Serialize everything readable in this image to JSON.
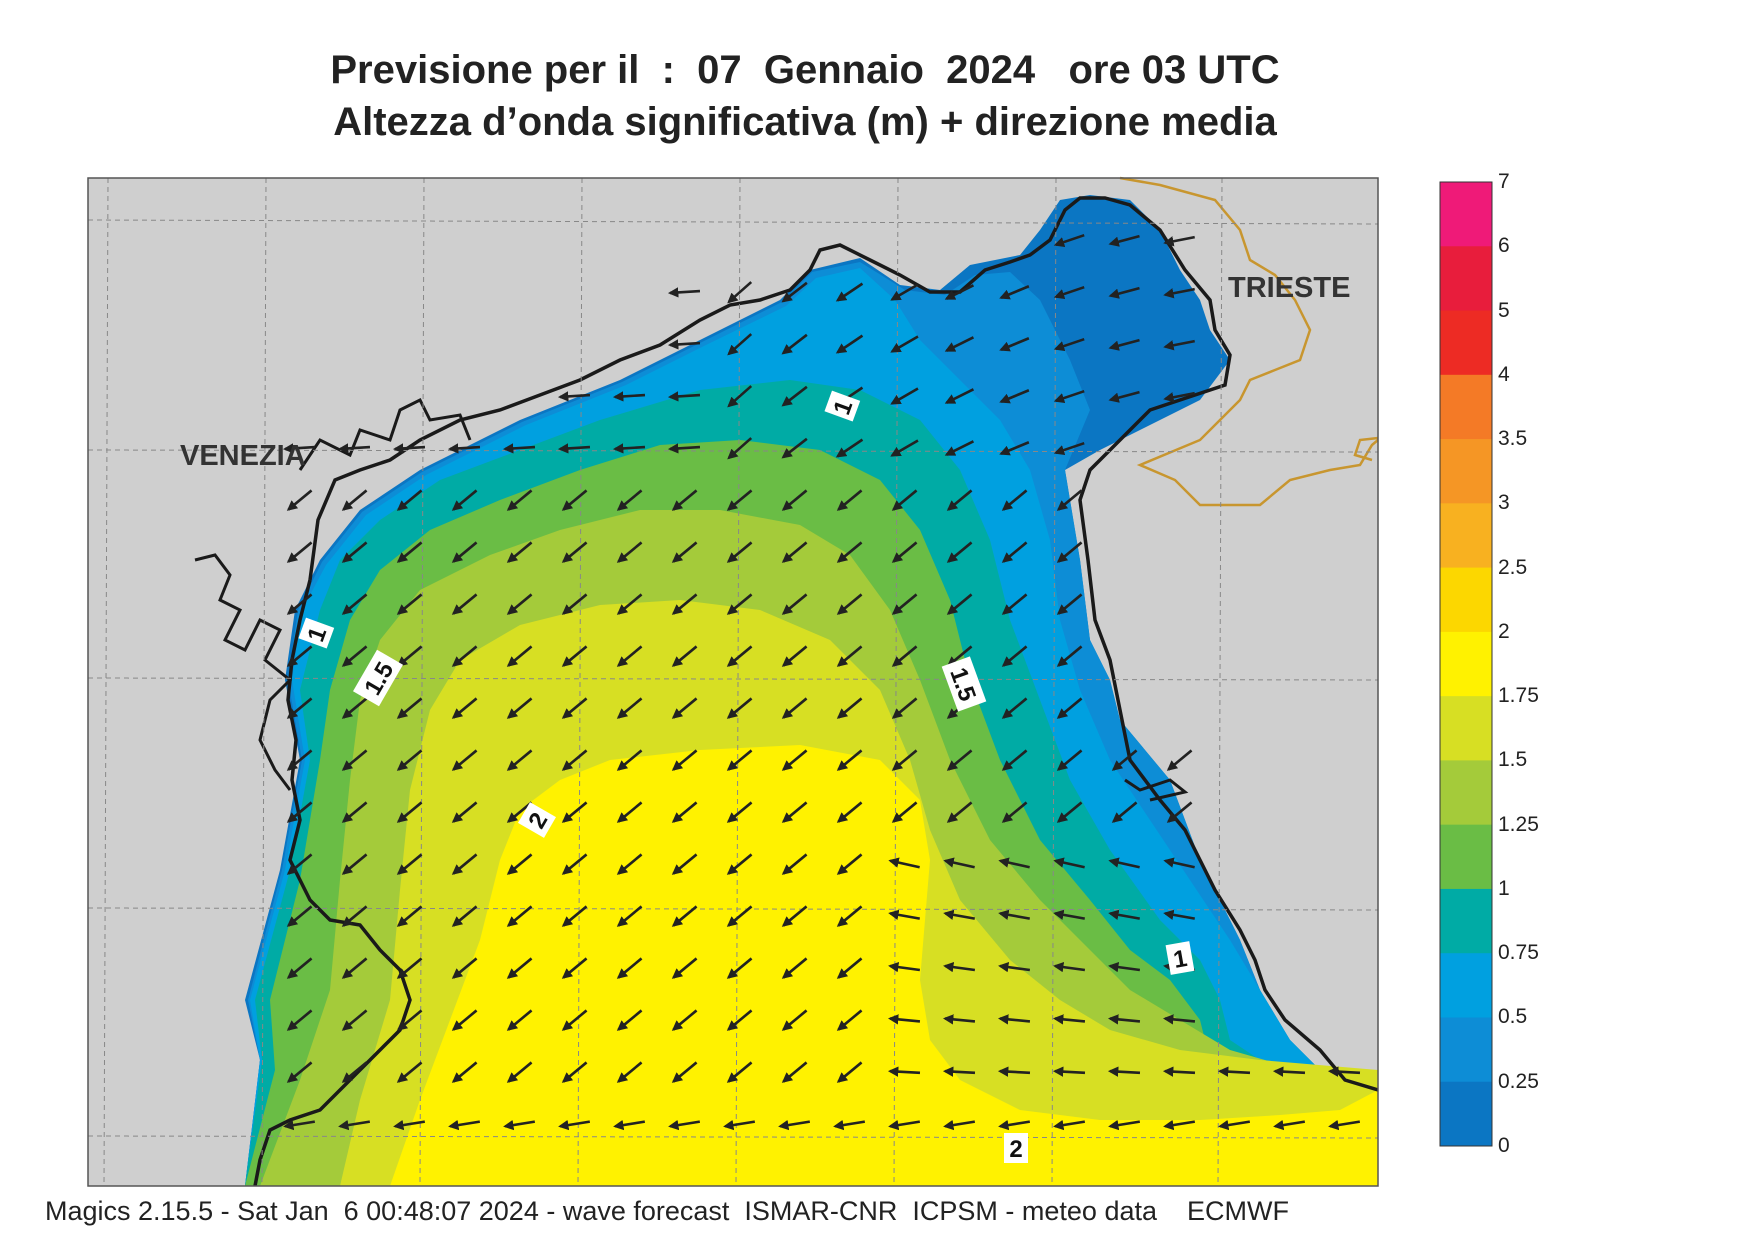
{
  "title": {
    "line1": "Previsione per il  :  07  Gennaio  2024   ore 03 UTC",
    "line2": "Altezza d’onda significativa (m) + direzione media"
  },
  "footer": "Magics 2.15.5 - Sat Jan  6 00:48:07 2024 - wave forecast  ISMAR-CNR  ICPSM - meteo data    ECMWF",
  "places": [
    {
      "name": "VENEZIA"
    },
    {
      "name": "TRIESTE"
    }
  ],
  "contour_labels": [
    "1",
    "1",
    "1",
    "1.5",
    "1.5",
    "2",
    "2"
  ],
  "legend": {
    "levels": [
      {
        "value": "7",
        "color": "#ef1a78"
      },
      {
        "value": "6",
        "color": "#e81d3c"
      },
      {
        "value": "5",
        "color": "#ed2b24"
      },
      {
        "value": "4",
        "color": "#f47a26"
      },
      {
        "value": "3.5",
        "color": "#f59625"
      },
      {
        "value": "3",
        "color": "#f8b120"
      },
      {
        "value": "2.5",
        "color": "#fcd700"
      },
      {
        "value": "2",
        "color": "#fff200"
      },
      {
        "value": "1.75",
        "color": "#d7df23"
      },
      {
        "value": "1.5",
        "color": "#a4cb3a"
      },
      {
        "value": "1.25",
        "color": "#6abd45"
      },
      {
        "value": "1",
        "color": "#00aba5"
      },
      {
        "value": "0.75",
        "color": "#00a0e0"
      },
      {
        "value": "0.5",
        "color": "#0d8dd6"
      },
      {
        "value": "0.25",
        "color": "#0b76c3"
      },
      {
        "value": "0",
        "color": "#0b5da8"
      }
    ]
  },
  "colors": {
    "land": "#cfcfcf",
    "coast": "#1a1a1a",
    "border": "#c8962f",
    "arrow": "#222222"
  }
}
